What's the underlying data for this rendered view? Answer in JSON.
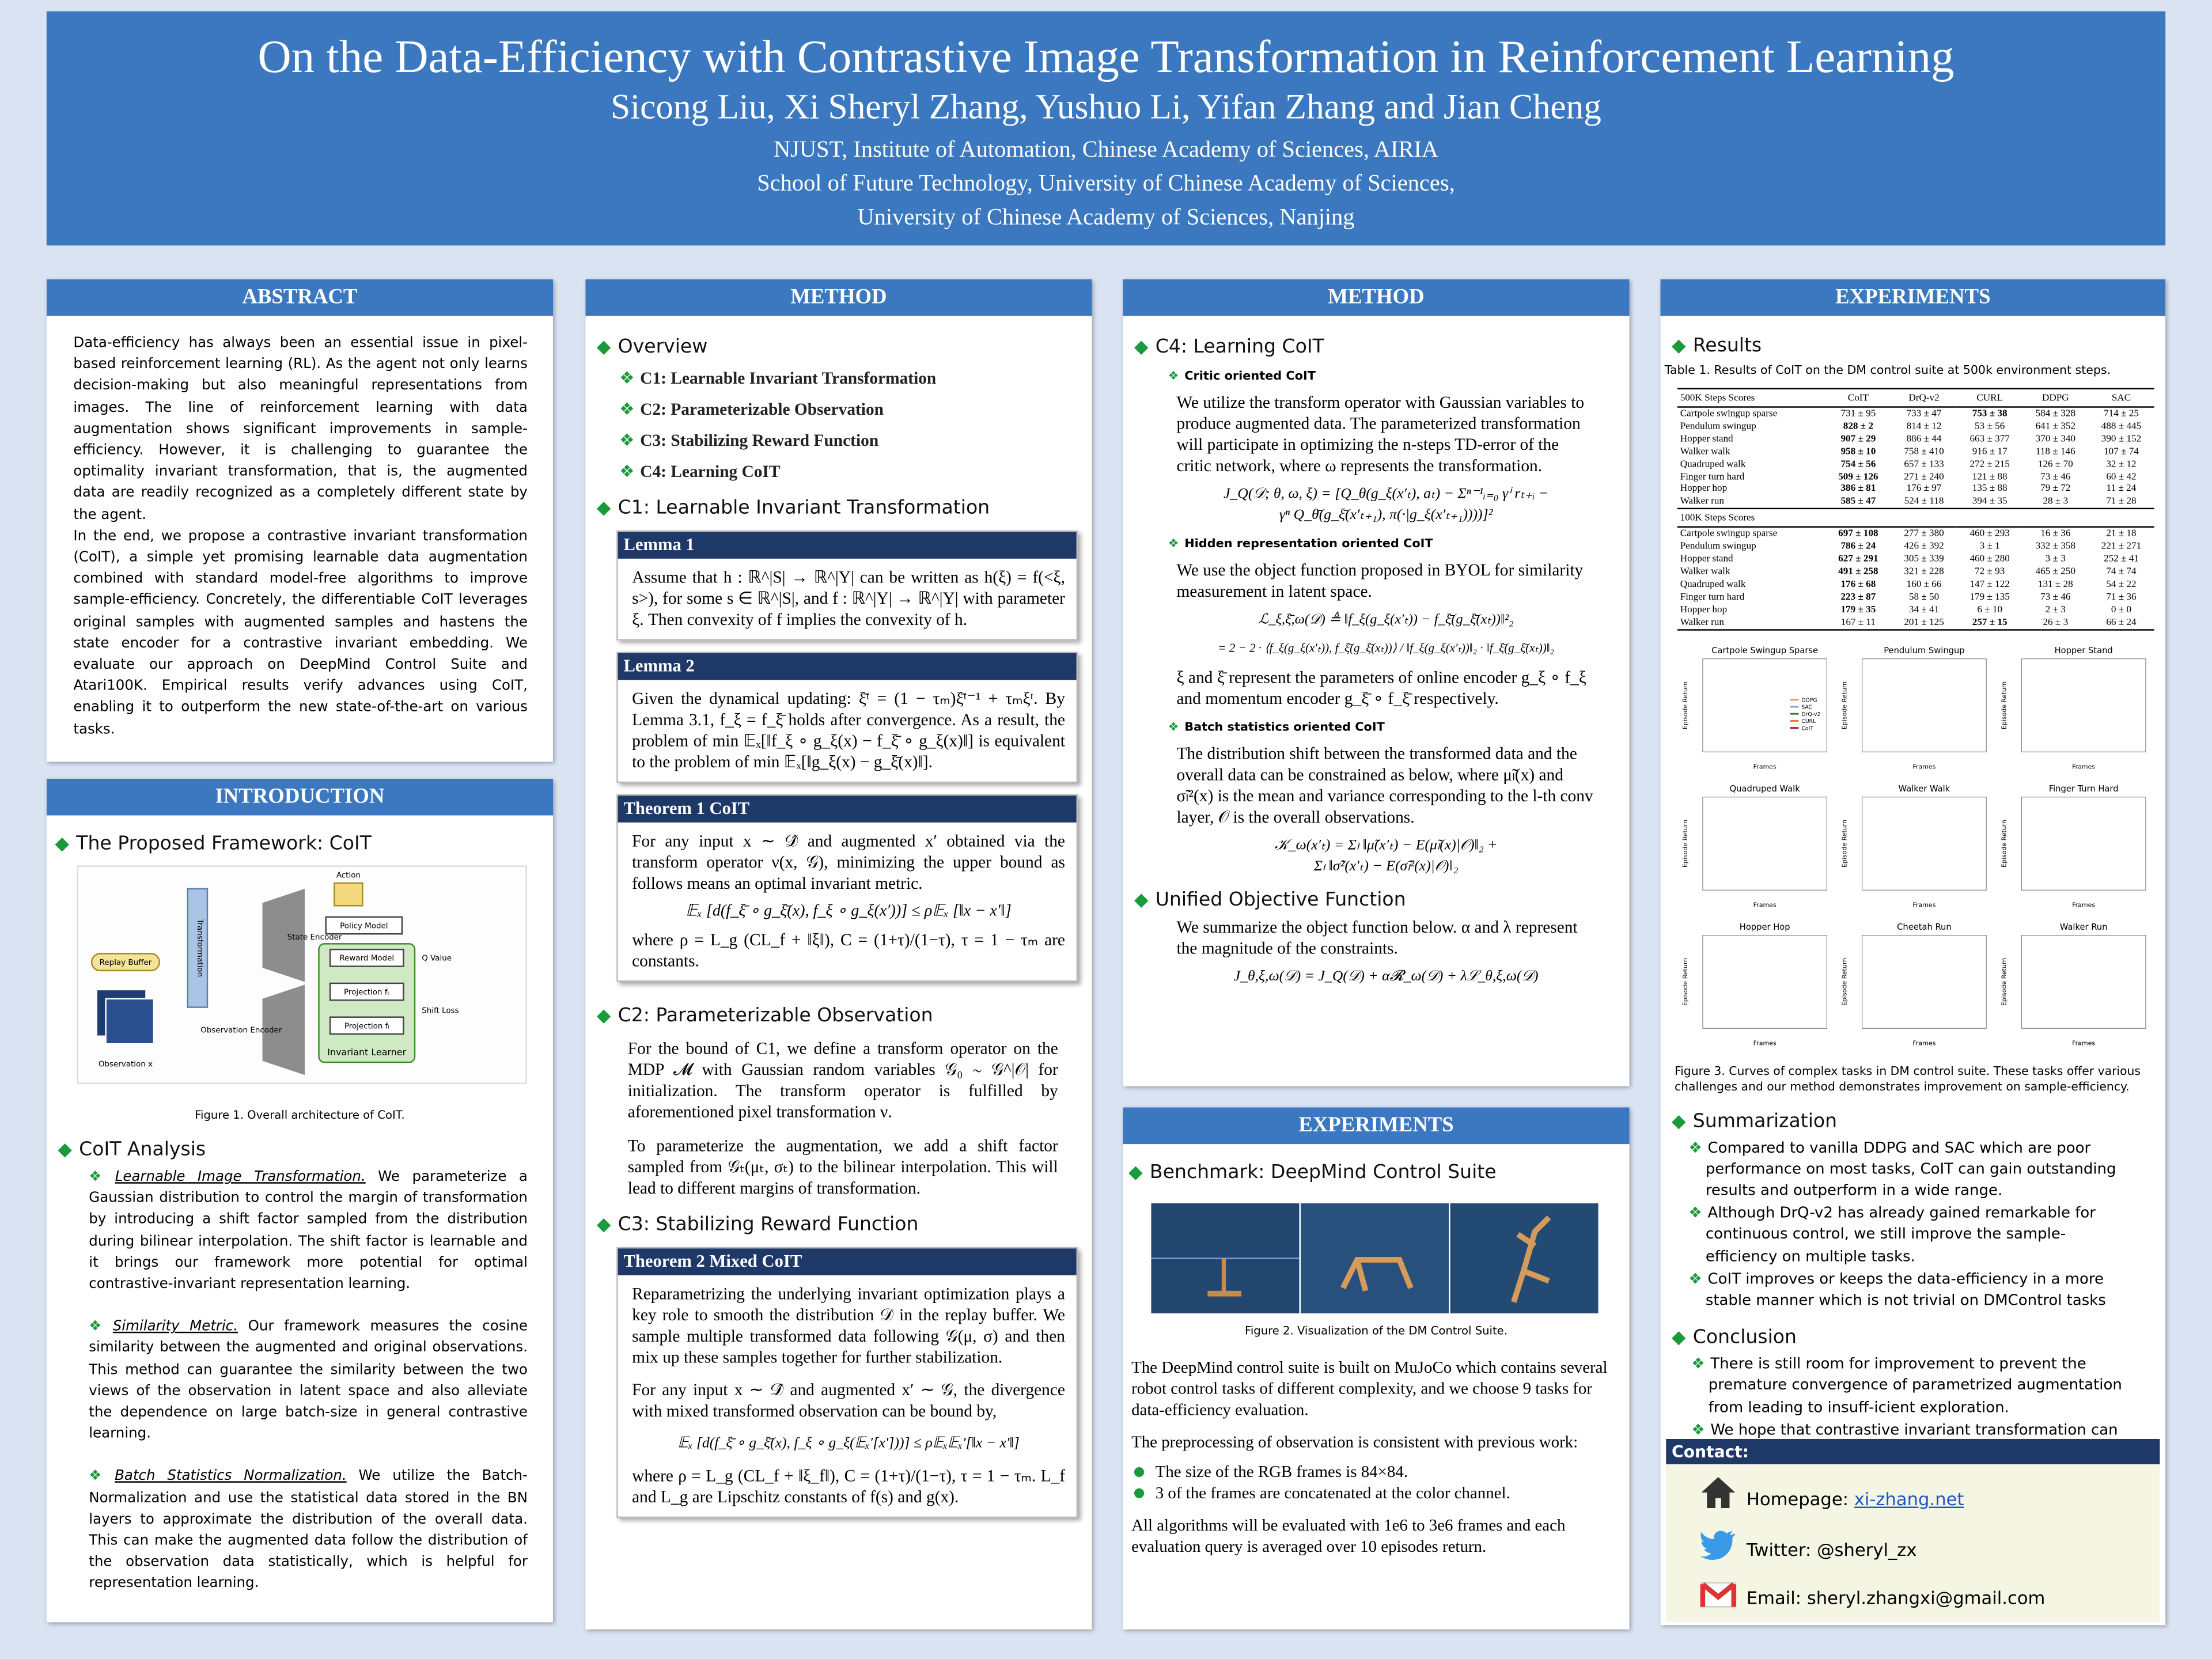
{
  "header": {
    "title": "On the Data-Efficiency with Contrastive Image Transformation in Reinforcement Learning",
    "authors": "Sicong Liu, Xi Sheryl Zhang, Yushuo Li, Yifan Zhang and Jian Cheng",
    "affiliations": [
      "NJUST,  Institute of Automation, Chinese Academy of Sciences,  AIRIA",
      "School of Future Technology, University of Chinese Academy of Sciences,",
      "University of Chinese Academy of Sciences, Nanjing"
    ]
  },
  "abstract": {
    "heading": "ABSTRACT",
    "paragraphs": [
      "Data-efficiency has always been an essential issue in pixel-based reinforcement learning (RL). As the agent not only learns decision-making but also meaningful representations from images. The line of reinforcement learning with data augmentation shows significant improvements in sample-efficiency. However, it is challenging to guarantee the optimality invariant transformation, that is, the augmented data are readily recognized as a completely different state by the agent.",
      "In the end, we propose a contrastive invariant transformation (CoIT), a simple yet promising learnable data augmentation combined with standard model-free algorithms to improve sample-efficiency. Concretely, the differentiable CoIT leverages original samples with augmented samples and hastens the state encoder for a contrastive invariant embedding. We evaluate our approach on DeepMind Control Suite and Atari100K. Empirical results verify advances using CoIT, enabling it to outperform the new state-of-the-art on various tasks."
    ]
  },
  "introduction": {
    "heading": "INTRODUCTION",
    "framework_title": "The  Proposed Framework: CoIT",
    "figure_labels": [
      "Action",
      "Policy Model",
      "Transformation",
      "State Encoder",
      "Q Value",
      "Reward Model",
      "Projection fₜ",
      "Projection fₗ",
      "Shift Loss",
      "Invariant Learner",
      "Replay Buffer",
      "Observation Encoder",
      "Observation x"
    ],
    "figure_caption": "Figure 1.  Overall architecture of  CoIT.",
    "analysis_title": "CoIT Analysis",
    "items": [
      {
        "term": "Learnable Image Transformation.",
        "text": " We parameterize a Gaussian distribution to control the margin of transformation by introducing a shift factor sampled from the distribution during bilinear interpolation. The shift factor is learnable and it brings our framework more potential for optimal contrastive-invariant representation learning."
      },
      {
        "term": "Similarity Metric.",
        "text": " Our framework measures the cosine similarity between the augmented and original observations. This method can guarantee the similarity between the two views of the observation in latent space and also alleviate the dependence on large batch-size in general contrastive learning."
      },
      {
        "term": "Batch Statistics Normalization.",
        "text": " We utilize the Batch-Normalization and use the statistical data stored in the BN layers to approximate the distribution of the overall data. This can make the augmented data follow the distribution of the observation data statistically, which is helpful for representation learning."
      }
    ]
  },
  "method_1": {
    "heading": "METHOD",
    "overview_title": "Overview",
    "overview_items": [
      "C1: Learnable Invariant Transformation",
      "C2: Parameterizable Observation",
      "C3: Stabilizing Reward Function",
      "C4: Learning CoIT"
    ],
    "c1_title": "C1: Learnable Invariant Transformation",
    "lemma1": {
      "title": "Lemma 1",
      "text": "Assume that h : ℝ^|S| → ℝ^|Y| can be written as h(ξ) = f(<ξ, s>), for some s ∈ ℝ^|S|, and f : ℝ^|Y| → ℝ^|Y| with parameter ξ. Then convexity of f implies the convexity of h."
    },
    "lemma2": {
      "title": "Lemma 2",
      "text": "Given the dynamical updating: ξ̄ᵗ = (1 − τₘ)ξ̄ᵗ⁻¹ + τₘξᵗ. By Lemma 3.1, f_ξ = f_ξ̄ holds after convergence. As a result, the problem of min 𝔼ₓ[‖f_ξ ∘ g_ξ(x) − f_ξ̄ ∘ g_ξ(x)‖] is equivalent to the problem of min 𝔼ₓ[‖g_ξ(x) − g_ξ̄(x)‖]."
    },
    "theorem1": {
      "title": "Theorem 1  CoIT",
      "text": "For any input x ∼ 𝒟̂ and augmented x′ obtained via the transform operator ν(x, 𝒢), minimizing the upper bound as follows means an optimal invariant metric.",
      "equation": "𝔼ₓ [d(f_ξ̄ ∘ g_ξ̄(x), f_ξ ∘ g_ξ(x′))] ≤ ρ𝔼ₓ [‖x − x′‖]",
      "after": "where ρ = L_g (CL_f + ‖ξ‖), C = (1+τ)/(1−τ), τ = 1 − τₘ are constants."
    },
    "c2_title": "C2: Parameterizable Observation",
    "c2_paragraphs": [
      "For the bound of C1, we define a transform operator on the MDP 𝓜 with Gaussian random variables 𝒢₀ ∼ 𝒢^|𝒪| for initialization.  The transform operator is fulfilled by aforementioned pixel transformation ν.",
      "To parameterize the augmentation, we add a shift factor sampled from 𝒢ₜ(μₜ, σₜ) to the bilinear interpolation. This will lead to different margins of transformation."
    ],
    "c3_title": "C3: Stabilizing Reward Function",
    "theorem2": {
      "title": "Theorem 2  Mixed CoIT",
      "text": "Reparametrizing the underlying invariant optimization plays a key role to smooth the distribution 𝒟 in the replay buffer. We sample multiple transformed data following 𝒢(μ, σ) and then mix up these samples together for further stabilization.",
      "text2": "For any input x ∼ 𝒟̂ and augmented x′ ∼ 𝒢, the divergence with mixed transformed observation can be bound by,",
      "equation": "𝔼ₓ [d(f_ξ̄ ∘ g_ξ̄(x), f_ξ ∘ g_ξ(𝔼ₓ′[x′]))] ≤ ρ𝔼ₓ𝔼ₓ′[‖x − x′‖]",
      "after": "where ρ = L_g (CL_f + ‖ξ_f‖), C = (1+τ)/(1−τ), τ = 1 − τₘ. L_f and L_g are Lipschitz constants of f(s) and g(x)."
    }
  },
  "method_2": {
    "heading": "METHOD",
    "c4_title": "C4: Learning CoIT",
    "critic": {
      "title": "Critic oriented CoIT",
      "text": "We utilize the transform operator with Gaussian variables to produce augmented data. The parameterized transformation will participate in optimizing the n-steps TD-error of the critic network, where ω represents the transformation.",
      "equation": [
        "J_Q(𝒟; θ, ω, ξ) = [Q_θ(g_ξ(x′ₜ), aₜ) − Σⁿ⁻¹ᵢ₌₀ γⁱ rₜ₊ᵢ −",
        "γⁿ Q_θ̄(g_ξ̄(x′ₜ₊₁), π(·|g_ξ(x′ₜ₊₁))))]²"
      ]
    },
    "hidden": {
      "title": "Hidden representation oriented CoIT",
      "text": "We use the object function proposed in BYOL for similarity measurement in latent space.",
      "equation": [
        "ℒ_ξ,ξ̄,ω(𝒟) ≜ ‖f_ξ(g_ξ(x′ₜ)) − f_ξ̄(g_ξ̄(xₜ))‖²₂",
        "= 2 − 2 · ⟨f_ξ(g_ξ(x′ₜ)), f_ξ̄(g_ξ̄(xₜ))⟩ / ‖f_ξ(g_ξ(x′ₜ))‖₂ · ‖f_ξ̄(g_ξ̄(xₜ))‖₂"
      ],
      "text2": "ξ and ξ̄ represent the parameters of online encoder g_ξ ∘ f_ξ and momentum encoder g_ξ̄ ∘ f_ξ̄ respectively."
    },
    "batch": {
      "title": "Batch statistics oriented CoIT",
      "text": "The distribution shift between the transformed data and the overall data can be constrained as below, where μ̃ₗ(x) and σ̃ₗ²(x) is the mean and variance corresponding to the l-th conv layer, 𝒪 is the overall observations.",
      "equation": [
        "𝒦_ω(x′ₜ) = Σₗ ‖μ̃(x′ₜ) − E(μ̃ₗ(x)|𝒪)‖₂ +",
        "Σₗ ‖σ̃²(x′ₜ) − E(σ̃ₗ²(x)|𝒪)‖₂"
      ]
    },
    "unified_title": "Unified Objective Function",
    "unified_text": "We summarize the object function below. α and λ represent the magnitude of the constraints.",
    "unified_equation": "J_θ,ξ,ω(𝒟) = J_Q(𝒟) + α𝓡_ω(𝒟) + λℒ_θ,ξ,ω(𝒟)"
  },
  "experiments_1": {
    "heading": "EXPERIMENTS",
    "benchmark_title": "Benchmark:  DeepMind Control Suite",
    "figure_caption": "Figure 2.  Visualization of the DM Control Suite.",
    "paragraphs": [
      "The DeepMind control suite is built on MuJoCo which contains several robot control tasks of different complexity, and we choose 9 tasks for data-efficiency evaluation.",
      "The preprocessing of observation is consistent with previous work:"
    ],
    "bullets": [
      "The size of the RGB frames is 84×84.",
      "3 of the frames are concatenated at the color channel."
    ],
    "closing": "All algorithms will be evaluated with 1e6 to 3e6 frames and each evaluation query is averaged over 10 episodes return."
  },
  "experiments_2": {
    "heading": "EXPERIMENTS",
    "results_title": "Results",
    "table_caption": "Table 1. Results of CoIT on the DM control suite at 500k environment steps.",
    "table": {
      "columns": [
        "500K Steps Scores",
        "CoIT",
        "DrQ-v2",
        "CURL",
        "DDPG",
        "SAC"
      ],
      "section2_label": "100K Steps Scores",
      "rows_500k": [
        {
          "task": "Cartpole swingup sparse",
          "scores": [
            "731 ± 95",
            "733 ± 47",
            "753 ± 38",
            "584 ± 328",
            "714 ± 25"
          ],
          "best": 2
        },
        {
          "task": "Pendulum swingup",
          "scores": [
            "828 ± 2",
            "814 ± 12",
            "53 ± 56",
            "641 ± 352",
            "488 ± 445"
          ],
          "best": 0
        },
        {
          "task": "Hopper stand",
          "scores": [
            "907 ± 29",
            "886 ± 44",
            "663 ± 377",
            "370 ± 340",
            "390 ± 152"
          ],
          "best": 0
        },
        {
          "task": "Walker walk",
          "scores": [
            "958 ± 10",
            "758 ± 410",
            "916 ± 17",
            "118 ± 146",
            "107 ± 74"
          ],
          "best": 0
        },
        {
          "task": "Quadruped walk",
          "scores": [
            "754 ± 56",
            "657 ± 133",
            "272 ± 215",
            "126 ± 70",
            "32 ± 12"
          ],
          "best": 0
        },
        {
          "task": "Finger turn hard",
          "scores": [
            "509 ± 126",
            "271 ± 240",
            "121 ± 88",
            "73 ± 46",
            "60 ± 42"
          ],
          "best": 0
        },
        {
          "task": "Hopper hop",
          "scores": [
            "386 ± 81",
            "176 ± 97",
            "135 ± 88",
            "79 ± 72",
            "11 ± 24"
          ],
          "best": 0
        },
        {
          "task": "Walker run",
          "scores": [
            "585 ± 47",
            "524 ± 118",
            "394 ± 35",
            "28 ± 3",
            "71 ± 28"
          ],
          "best": 0
        }
      ],
      "rows_100k": [
        {
          "task": "Cartpole swingup sparse",
          "scores": [
            "697 ± 108",
            "277 ± 380",
            "460 ± 293",
            "16 ± 36",
            "21 ± 18"
          ],
          "best": 0
        },
        {
          "task": "Pendulum swingup",
          "scores": [
            "786 ± 24",
            "426 ± 392",
            "3 ± 1",
            "332 ± 358",
            "221 ± 271"
          ],
          "best": 0
        },
        {
          "task": "Hopper stand",
          "scores": [
            "627 ± 291",
            "305 ± 339",
            "460 ± 280",
            "3 ± 3",
            "252 ± 41"
          ],
          "best": 0
        },
        {
          "task": "Walker walk",
          "scores": [
            "491 ± 258",
            "321 ± 228",
            "72 ± 93",
            "465 ± 250",
            "74 ± 74"
          ],
          "best": 0
        },
        {
          "task": "Quadruped walk",
          "scores": [
            "176 ± 68",
            "160 ± 66",
            "147 ± 122",
            "131 ± 28",
            "54 ± 22"
          ],
          "best": 0
        },
        {
          "task": "Finger turn hard",
          "scores": [
            "223 ± 87",
            "58 ± 50",
            "179 ± 135",
            "73 ± 46",
            "71 ± 36"
          ],
          "best": 0
        },
        {
          "task": "Hopper hop",
          "scores": [
            "179 ± 35",
            "34 ± 41",
            "6 ± 10",
            "2 ± 3",
            "0 ± 0"
          ],
          "best": 0
        },
        {
          "task": "Walker run",
          "scores": [
            "167 ± 11",
            "201 ± 125",
            "257 ± 15",
            "26 ± 3",
            "66 ± 24"
          ],
          "best": 2
        }
      ]
    },
    "plot_titles": [
      "Cartpole Swingup Sparse",
      "Pendulum Swingup",
      "Hopper Stand",
      "Quadruped Walk",
      "Walker Walk",
      "Finger Turn Hard",
      "Hopper Hop",
      "Cheetah Run",
      "Walker Run"
    ],
    "plot_ylabel": "Episode Return",
    "plot_xlabel": "Frames",
    "legend": [
      "DDPG",
      "SAC",
      "DrQ-v2",
      "CURL",
      "CoIT"
    ],
    "figure_caption": "Figure 3. Curves of complex tasks in DM control suite. These tasks offer various challenges and our method demonstrates improvement on sample-efficiency.",
    "summarization_title": "Summarization",
    "summarization": [
      "Compared to vanilla DDPG and SAC which are poor performance on most tasks, CoIT can gain outstanding results and outperform in a wide range.",
      "Although DrQ-v2 has already gained remarkable for continuous control, we still improve the sample-efficiency on multiple tasks.",
      "CoIT improves or keeps the data-efficiency in a more stable manner which is not trivial on DMControl tasks"
    ],
    "conclusion_title": "Conclusion",
    "conclusion": [
      "There is still room for improvement to prevent the premature convergence of parametrized augmentation from leading to insuff-icient exploration.",
      "We hope that  contrastive invariant transformation can lead to a new branch for representation learning in RL."
    ],
    "contact": {
      "title": "Contact:",
      "homepage_label": "Homepage: ",
      "homepage_link": "xi-zhang.net",
      "twitter": "Twitter: @sheryl_zx",
      "email": "Email: sheryl.zhangxi@gmail.com"
    }
  }
}
